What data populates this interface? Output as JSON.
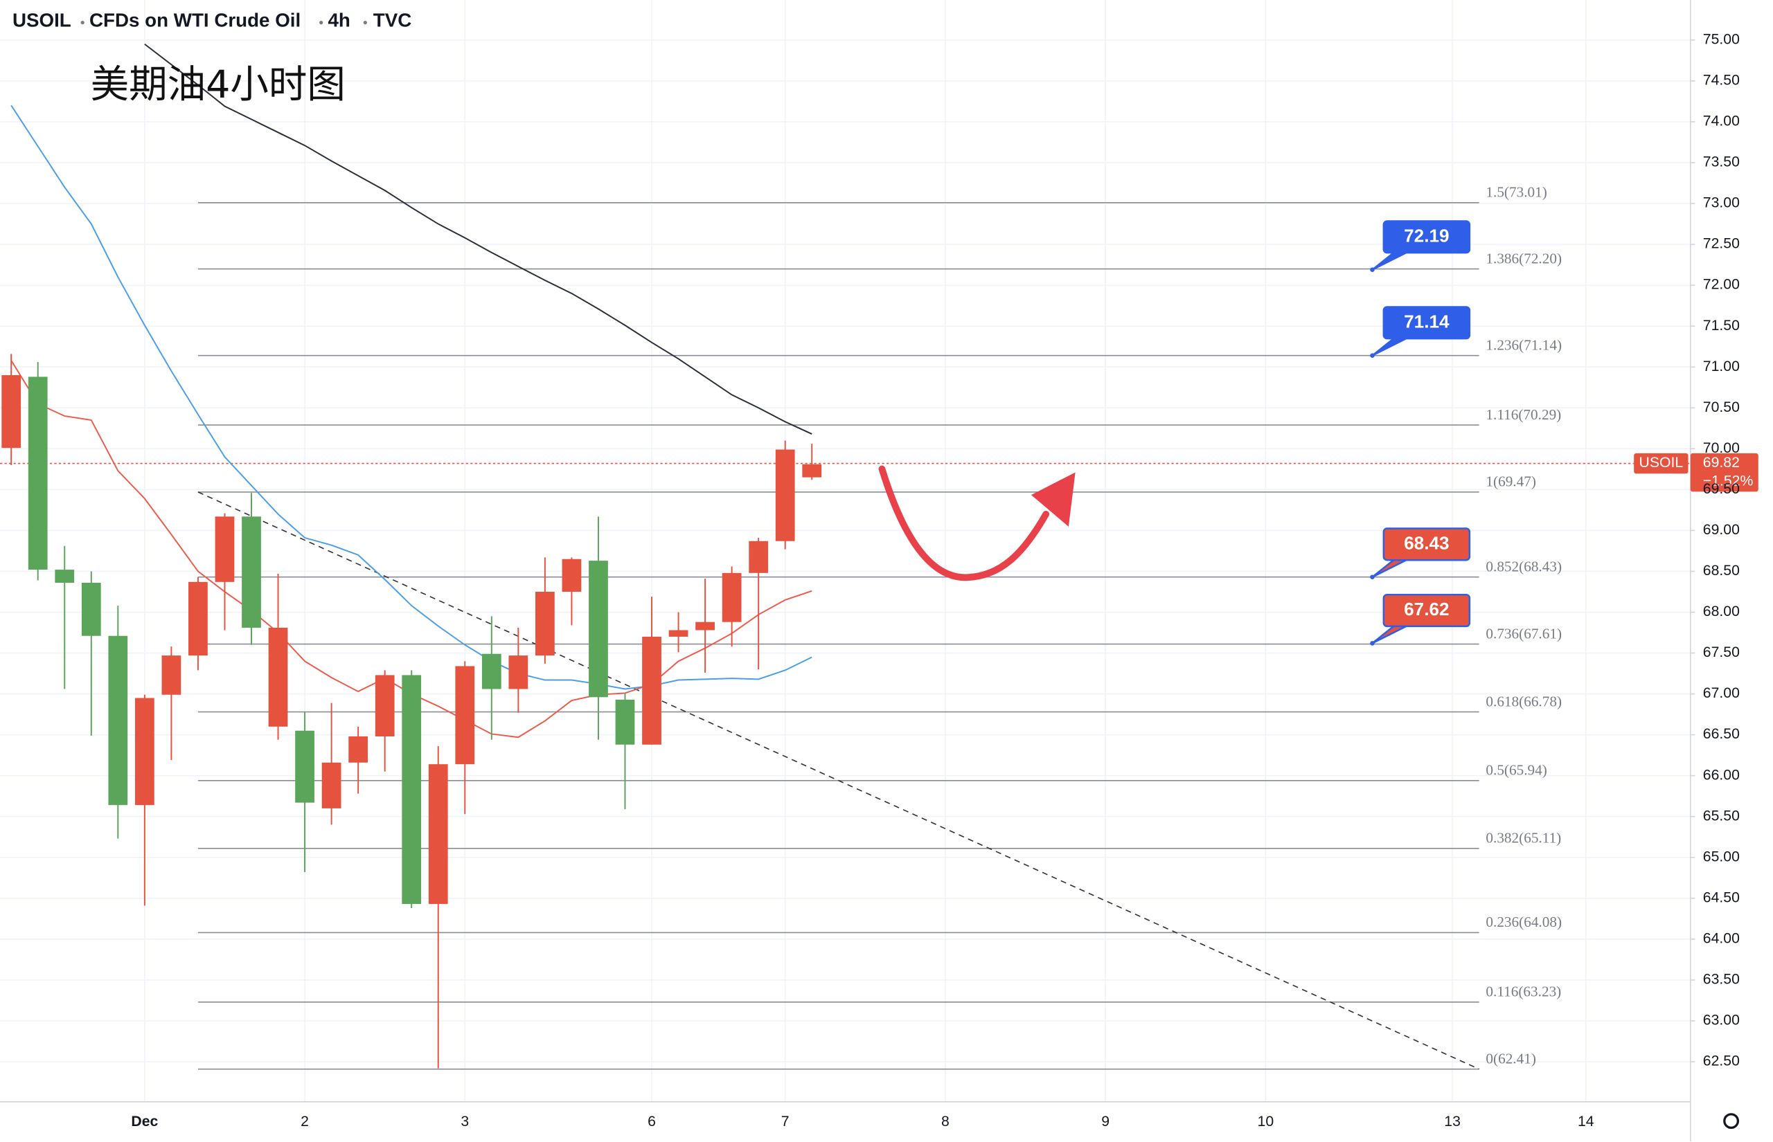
{
  "chart_data": {
    "type": "candlestick",
    "header": [
      "USOIL",
      "CFDs on WTI Crude Oil",
      "4h",
      "TVC"
    ],
    "annotation": "美期油4小时图",
    "up_color": "#5ba55b",
    "down_color": "#e5533f",
    "open": [
      70.9,
      68.52,
      68.36,
      67.71,
      65.64,
      66.95,
      67.47,
      68.37,
      69.17,
      67.81,
      67.81,
      65.67,
      66.16,
      66.48,
      67.23,
      64.43,
      66.14,
      67.34,
      67.06,
      67.47,
      68.25,
      68.65,
      66.96,
      66.38,
      67.7,
      67.78,
      67.88,
      68.48,
      68.87,
      69.99,
      69.81
    ],
    "high": [
      71.16,
      71.06,
      68.81,
      68.5,
      68.08,
      66.99,
      67.58,
      68.43,
      69.21,
      69.46,
      68.47,
      66.78,
      66.89,
      66.6,
      67.29,
      67.29,
      66.36,
      67.4,
      67.95,
      67.81,
      68.67,
      68.67,
      69.17,
      67.01,
      68.19,
      68.0,
      68.41,
      68.56,
      68.91,
      70.1,
      70.06
    ],
    "low": [
      69.8,
      68.39,
      67.06,
      66.49,
      65.23,
      64.41,
      66.19,
      67.29,
      67.78,
      67.6,
      66.44,
      64.82,
      65.4,
      65.78,
      66.05,
      64.38,
      62.42,
      65.53,
      66.44,
      66.77,
      67.37,
      67.84,
      66.44,
      65.59,
      66.38,
      67.51,
      67.26,
      67.58,
      67.3,
      68.77,
      69.62
    ],
    "close": [
      70.01,
      70.88,
      68.52,
      68.36,
      67.71,
      65.64,
      66.99,
      67.47,
      68.37,
      69.17,
      66.6,
      66.55,
      65.6,
      66.16,
      66.48,
      67.23,
      64.43,
      66.14,
      67.49,
      67.06,
      67.47,
      68.25,
      68.63,
      66.93,
      66.38,
      67.7,
      67.78,
      67.88,
      68.48,
      68.87,
      69.65
    ],
    "lines": [
      {
        "color": "#2a2e39",
        "values": [
          null,
          null,
          null,
          null,
          null,
          74.95,
          74.7,
          74.45,
          74.19,
          74.03,
          73.87,
          73.71,
          73.52,
          73.34,
          73.16,
          72.95,
          72.75,
          72.58,
          72.4,
          72.23,
          72.06,
          71.9,
          71.71,
          71.51,
          71.3,
          71.1,
          70.88,
          70.66,
          70.5,
          70.33,
          70.18
        ]
      },
      {
        "color": "#4a9ee8",
        "values": [
          74.2,
          73.7,
          73.2,
          72.75,
          72.1,
          71.51,
          70.95,
          70.42,
          69.9,
          69.55,
          69.2,
          68.91,
          68.82,
          68.7,
          68.4,
          68.08,
          67.83,
          67.6,
          67.4,
          67.25,
          67.17,
          67.17,
          67.12,
          67.06,
          67.1,
          67.17,
          67.18,
          67.19,
          67.18,
          67.29,
          67.45
        ]
      },
      {
        "color": "#ee5a4a",
        "values": [
          71.08,
          70.55,
          70.4,
          70.35,
          69.73,
          69.39,
          68.95,
          68.5,
          68.25,
          68.02,
          67.75,
          67.4,
          67.2,
          67.03,
          67.19,
          67.0,
          66.85,
          66.68,
          66.51,
          66.47,
          66.67,
          66.92,
          66.99,
          67.01,
          67.12,
          67.4,
          67.56,
          67.74,
          67.97,
          68.15,
          68.26
        ]
      }
    ],
    "fib_range": [
      7,
      55
    ],
    "fib_levels": [
      {
        "value": 73.01,
        "label": "1.5(73.01)"
      },
      {
        "value": 72.2,
        "label": "1.386(72.20)"
      },
      {
        "value": 71.14,
        "label": "1.236(71.14)"
      },
      {
        "value": 70.29,
        "label": "1.116(70.29)"
      },
      {
        "value": 69.47,
        "label": "1(69.47)"
      },
      {
        "value": 68.43,
        "label": "0.852(68.43)"
      },
      {
        "value": 67.61,
        "label": "0.736(67.61)"
      },
      {
        "value": 66.78,
        "label": "0.618(66.78)"
      },
      {
        "value": 65.94,
        "label": "0.5(65.94)"
      },
      {
        "value": 65.11,
        "label": "0.382(65.11)"
      },
      {
        "value": 64.08,
        "label": "0.236(64.08)"
      },
      {
        "value": 63.23,
        "label": "0.116(63.23)"
      },
      {
        "value": 62.41,
        "label": "0(62.41)"
      }
    ],
    "trendline": {
      "x": [
        7,
        55
      ],
      "values": [
        69.47,
        62.41
      ]
    },
    "price_callouts": [
      {
        "x": 51,
        "value": 72.19,
        "color": "#2f5ee8"
      },
      {
        "x": 51,
        "value": 71.14,
        "color": "#2f5ee8"
      },
      {
        "x": 51,
        "value": 68.43,
        "color": "#e5533f"
      },
      {
        "x": 51,
        "value": 67.62,
        "color": "#e5533f"
      }
    ],
    "last_price": {
      "symbol": "USOIL",
      "value": 69.82,
      "change": {
        "value": -1.52,
        "label": "−1.52%"
      }
    },
    "xlim": [
      -0.42,
      62.92
    ],
    "xticks": [
      {
        "value": 5,
        "label": "Dec"
      },
      {
        "value": 11,
        "label": "2"
      },
      {
        "value": 17,
        "label": "3"
      },
      {
        "value": 24,
        "label": "6"
      },
      {
        "value": 29,
        "label": "7"
      },
      {
        "value": 35,
        "label": "8"
      },
      {
        "value": 41,
        "label": "9"
      },
      {
        "value": 47,
        "label": "10"
      },
      {
        "value": 54,
        "label": "13"
      },
      {
        "value": 59,
        "label": "14"
      }
    ],
    "ylim": [
      62.01,
      75.49
    ],
    "yticks": [
      {
        "value": 62.5,
        "label": "62.50"
      },
      {
        "value": 63,
        "label": "63.00"
      },
      {
        "value": 63.5,
        "label": "63.50"
      },
      {
        "value": 64,
        "label": "64.00"
      },
      {
        "value": 64.5,
        "label": "64.50"
      },
      {
        "value": 65,
        "label": "65.00"
      },
      {
        "value": 65.5,
        "label": "65.50"
      },
      {
        "value": 66,
        "label": "66.00"
      },
      {
        "value": 66.5,
        "label": "66.50"
      },
      {
        "value": 67,
        "label": "67.00"
      },
      {
        "value": 67.5,
        "label": "67.50"
      },
      {
        "value": 68,
        "label": "68.00"
      },
      {
        "value": 68.5,
        "label": "68.50"
      },
      {
        "value": 69,
        "label": "69.00"
      },
      {
        "value": 69.5,
        "label": "69.50"
      },
      {
        "value": 70,
        "label": "70.00"
      },
      {
        "value": 70.5,
        "label": "70.50"
      },
      {
        "value": 71,
        "label": "71.00"
      },
      {
        "value": 71.5,
        "label": "71.50"
      },
      {
        "value": 72,
        "label": "72.00"
      },
      {
        "value": 72.5,
        "label": "72.50"
      },
      {
        "value": 73,
        "label": "73.00"
      },
      {
        "value": 73.5,
        "label": "73.50"
      },
      {
        "value": 74,
        "label": "74.00"
      },
      {
        "value": 74.5,
        "label": "74.50"
      },
      {
        "value": 75,
        "label": "75.00"
      }
    ],
    "grid": true
  }
}
